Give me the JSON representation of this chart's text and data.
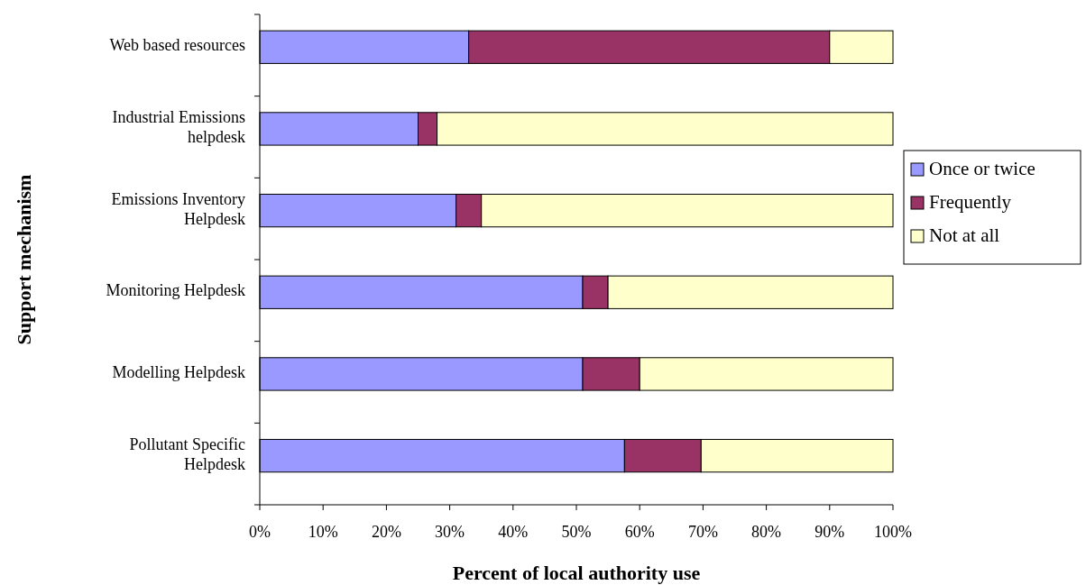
{
  "chart_data": {
    "type": "bar",
    "orientation": "horizontal",
    "stacked": true,
    "xlabel": "Percent of local authority use",
    "ylabel": "Support mechanism",
    "categories": [
      "Web based resources",
      "Industrial Emissions helpdesk",
      "Emissions Inventory Helpdesk",
      "Monitoring Helpdesk",
      "Modelling Helpdesk",
      "Pollutant Specific Helpdesk"
    ],
    "series": [
      {
        "name": "Once or twice",
        "color": "#9999ff",
        "values": [
          33,
          25,
          31,
          51,
          51,
          57.6
        ]
      },
      {
        "name": "Frequently",
        "color": "#993366",
        "values": [
          57,
          3,
          4,
          4,
          9,
          12.1
        ]
      },
      {
        "name": "Not at all",
        "color": "#ffffcc",
        "values": [
          10,
          72,
          65,
          45,
          40,
          30.3
        ]
      }
    ],
    "xlim": [
      0,
      100
    ],
    "xticks": [
      {
        "value": 0,
        "label": "0%"
      },
      {
        "value": 10,
        "label": "10%"
      },
      {
        "value": 20,
        "label": "20%"
      },
      {
        "value": 30,
        "label": "30%"
      },
      {
        "value": 40,
        "label": "40%"
      },
      {
        "value": 50,
        "label": "50%"
      },
      {
        "value": 60,
        "label": "60%"
      },
      {
        "value": 70,
        "label": "70%"
      },
      {
        "value": 80,
        "label": "80%"
      },
      {
        "value": 90,
        "label": "90%"
      },
      {
        "value": 100,
        "label": "100%"
      }
    ],
    "grid": false,
    "legend": "right"
  }
}
